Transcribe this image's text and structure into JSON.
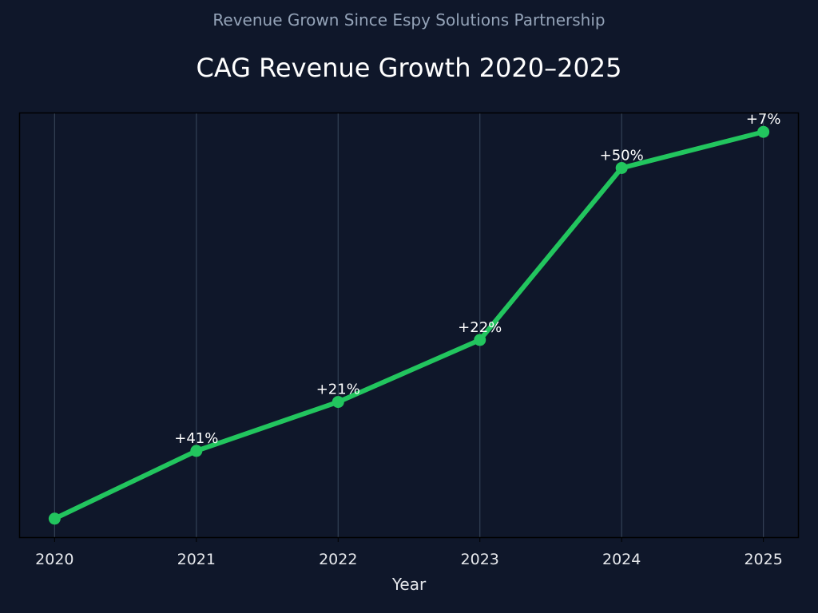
{
  "chart_data": {
    "type": "line",
    "subtitle": "Revenue Grown Since Espy Solutions Partnership",
    "title": "CAG Revenue Growth 2020–2025",
    "xlabel": "Year",
    "ylabel": "",
    "categories": [
      "2020",
      "2021",
      "2022",
      "2023",
      "2024",
      "2025"
    ],
    "growth_pct": [
      null,
      41,
      21,
      22,
      50,
      7
    ],
    "data_labels": [
      "",
      "+41%",
      "+21%",
      "+22%",
      "+50%",
      "+7%"
    ],
    "xlim": [
      2019.75,
      2025.25
    ],
    "y_axis_visible": false,
    "grid": "vertical",
    "legend": "none",
    "colors": {
      "background": "#0f172a",
      "line": "#22c55e",
      "grid": "#334155",
      "title": "#ffffff",
      "subtitle": "#94a3b8",
      "text": "#e5e7eb"
    }
  }
}
